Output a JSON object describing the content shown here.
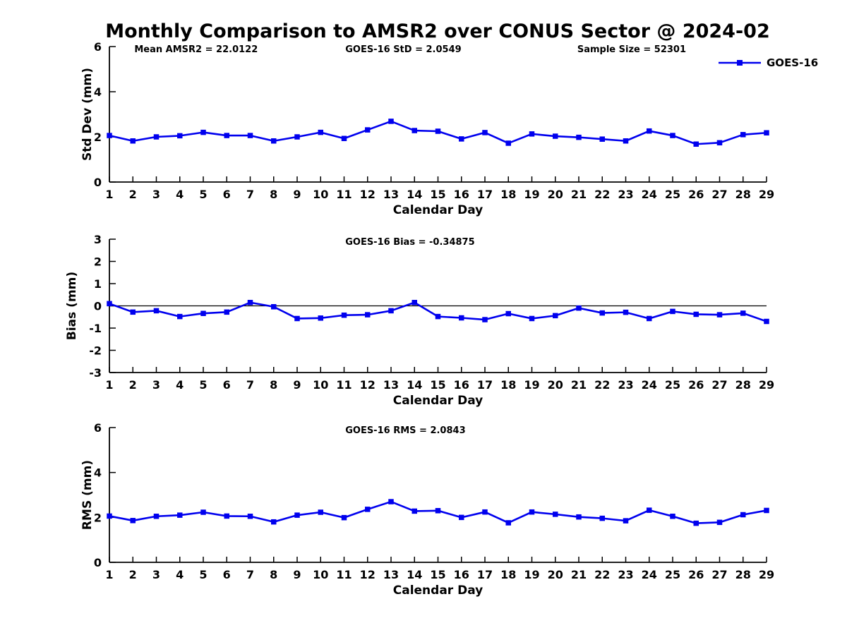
{
  "figure": {
    "title": "Monthly Comparison to AMSR2 over CONUS Sector @ 2024-02",
    "legend": {
      "label": "GOES-16",
      "position": "top-right"
    },
    "colors": {
      "series": "#0000EE",
      "axis": "#000000",
      "text": "#000000",
      "background": "#FFFFFF"
    }
  },
  "chart_data": [
    {
      "type": "line",
      "name": "std-dev",
      "xlabel": "Calendar Day",
      "ylabel": "Std Dev (mm)",
      "ylim": [
        0,
        6
      ],
      "yticks": [
        0,
        2,
        4,
        6
      ],
      "grid": false,
      "zero_line": false,
      "legend_visible": true,
      "marker": "square",
      "annotations": [
        {
          "text": "Mean AMSR2 = 22.0122",
          "xfrac": 0.038
        },
        {
          "text": "GOES-16 StD = 2.0549",
          "xfrac": 0.359
        },
        {
          "text": "Sample Size = 52301",
          "xfrac": 0.712
        }
      ],
      "x": [
        1,
        2,
        3,
        4,
        5,
        6,
        7,
        8,
        9,
        10,
        11,
        12,
        13,
        14,
        15,
        16,
        17,
        18,
        19,
        20,
        21,
        22,
        23,
        24,
        25,
        26,
        27,
        28,
        29
      ],
      "series": [
        {
          "name": "GOES-16",
          "values": [
            2.06,
            1.82,
            2.0,
            2.05,
            2.2,
            2.06,
            2.06,
            1.82,
            2.0,
            2.2,
            1.93,
            2.31,
            2.69,
            2.28,
            2.25,
            1.91,
            2.19,
            1.72,
            2.13,
            2.03,
            1.98,
            1.9,
            1.82,
            2.26,
            2.06,
            1.68,
            1.74,
            2.1,
            2.18
          ]
        }
      ]
    },
    {
      "type": "line",
      "name": "bias",
      "xlabel": "Calendar Day",
      "ylabel": "Bias (mm)",
      "ylim": [
        -3,
        3
      ],
      "yticks": [
        -3,
        -2,
        -1,
        0,
        1,
        2,
        3
      ],
      "grid": false,
      "zero_line": true,
      "legend_visible": false,
      "marker": "square",
      "annotations": [
        {
          "text": "GOES-16 Bias = -0.34875",
          "xfrac": 0.359
        }
      ],
      "x": [
        1,
        2,
        3,
        4,
        5,
        6,
        7,
        8,
        9,
        10,
        11,
        12,
        13,
        14,
        15,
        16,
        17,
        18,
        19,
        20,
        21,
        22,
        23,
        24,
        25,
        26,
        27,
        28,
        29
      ],
      "series": [
        {
          "name": "GOES-16",
          "values": [
            0.1,
            -0.28,
            -0.22,
            -0.48,
            -0.34,
            -0.28,
            0.15,
            -0.04,
            -0.57,
            -0.55,
            -0.42,
            -0.4,
            -0.22,
            0.15,
            -0.48,
            -0.54,
            -0.62,
            -0.35,
            -0.57,
            -0.44,
            -0.1,
            -0.32,
            -0.29,
            -0.57,
            -0.25,
            -0.38,
            -0.4,
            -0.33,
            -0.7
          ]
        }
      ]
    },
    {
      "type": "line",
      "name": "rms",
      "xlabel": "Calendar Day",
      "ylabel": "RMS (mm)",
      "ylim": [
        0,
        6
      ],
      "yticks": [
        0,
        2,
        4,
        6
      ],
      "grid": false,
      "zero_line": false,
      "legend_visible": false,
      "marker": "square",
      "annotations": [
        {
          "text": "GOES-16 RMS = 2.0843",
          "xfrac": 0.359
        }
      ],
      "x": [
        1,
        2,
        3,
        4,
        5,
        6,
        7,
        8,
        9,
        10,
        11,
        12,
        13,
        14,
        15,
        16,
        17,
        18,
        19,
        20,
        21,
        22,
        23,
        24,
        25,
        26,
        27,
        28,
        29
      ],
      "series": [
        {
          "name": "GOES-16",
          "values": [
            2.06,
            1.86,
            2.05,
            2.1,
            2.23,
            2.06,
            2.05,
            1.8,
            2.1,
            2.23,
            1.99,
            2.36,
            2.7,
            2.28,
            2.3,
            2.0,
            2.24,
            1.76,
            2.24,
            2.14,
            2.02,
            1.96,
            1.85,
            2.32,
            2.05,
            1.74,
            1.78,
            2.12,
            2.31
          ]
        }
      ]
    }
  ]
}
